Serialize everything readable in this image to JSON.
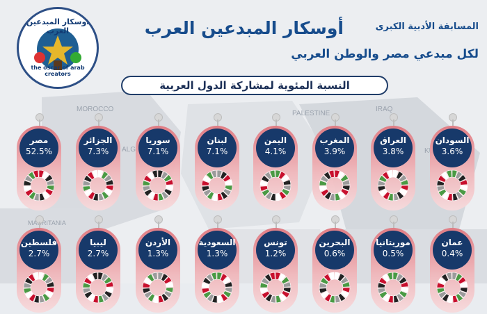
{
  "header": {
    "title": "أوسكار المبدعين العرب",
    "subtitle_top": "المسابقة الأدبية الكبرى",
    "subtitle": "لكل مبدعي مصر والوطن العربي",
    "banner": "النسبة المئوية لمشاركة الدول العربية"
  },
  "logo": {
    "arabic_text": "أوسكار المبدعين العرب",
    "english_text": "the oscar of arab creators"
  },
  "map_labels": [
    "MOROCCO",
    "ALGER",
    "PALESTINE",
    "IRAQ",
    "KUWAIT",
    "MAURITANIA"
  ],
  "colors": {
    "title": "#174c8c",
    "card_head": "#17396a",
    "pill_top": "#e07880",
    "pill_bottom": "#f7dadc"
  },
  "countries_row1": [
    {
      "name": "مصر",
      "pct": "52.5%"
    },
    {
      "name": "الجزائر",
      "pct": "7.3%"
    },
    {
      "name": "سوريا",
      "pct": "7.1%"
    },
    {
      "name": "لبنان",
      "pct": "7.1%"
    },
    {
      "name": "اليمن",
      "pct": "4.1%"
    },
    {
      "name": "المغرب",
      "pct": "3.9%"
    },
    {
      "name": "العراق",
      "pct": "3.8%"
    },
    {
      "name": "السودان",
      "pct": "3.6%"
    }
  ],
  "countries_row2": [
    {
      "name": "فلسطين",
      "pct": "2.7%"
    },
    {
      "name": "ليبيا",
      "pct": "2.7%"
    },
    {
      "name": "الأردن",
      "pct": "1.3%"
    },
    {
      "name": "السعودية",
      "pct": "1.3%"
    },
    {
      "name": "تونس",
      "pct": "1.2%"
    },
    {
      "name": "البحرين",
      "pct": "0.6%"
    },
    {
      "name": "موريتانيا",
      "pct": "0.5%"
    },
    {
      "name": "عمان",
      "pct": "0.4%"
    }
  ]
}
